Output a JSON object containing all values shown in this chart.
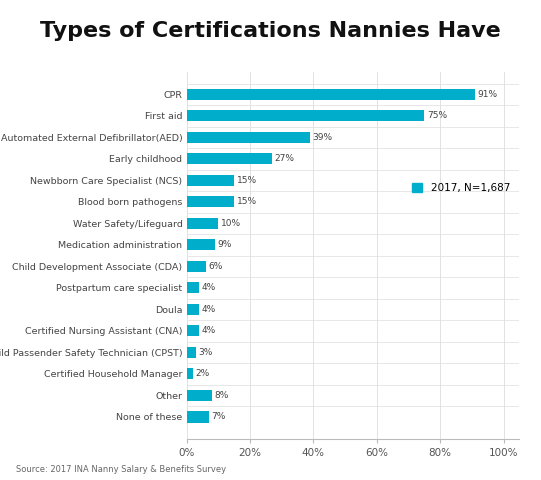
{
  "title": "Types of Certifications Nannies Have",
  "title_bg_color": "#F5D000",
  "bar_color": "#00AECC",
  "source_text": "Source: 2017 INA Nanny Salary & Benefits Survey",
  "legend_label": "2017, N=1,687",
  "categories": [
    "CPR",
    "First aid",
    "Automated External Defibrillator(AED)",
    "Early childhood",
    "Newbborn Care Specialist (NCS)",
    "Blood born pathogens",
    "Water Safety/Lifeguard",
    "Medication administration",
    "Child Development Associate (CDA)",
    "Postpartum care specialist",
    "Doula",
    "Certified Nursing Assistant (CNA)",
    "Child Passender Safety Technician (CPST)",
    "Certified Household Manager",
    "Other",
    "None of these"
  ],
  "values": [
    91,
    75,
    39,
    27,
    15,
    15,
    10,
    9,
    6,
    4,
    4,
    4,
    3,
    2,
    8,
    7
  ],
  "xlim": [
    0,
    100
  ],
  "xtick_labels": [
    "0%",
    "20%",
    "40%",
    "60%",
    "80%",
    "100%"
  ],
  "xtick_values": [
    0,
    20,
    40,
    60,
    80,
    100
  ],
  "background_color": "#ffffff",
  "label_fontsize": 6.8,
  "value_fontsize": 6.5,
  "title_fontsize": 16,
  "source_fontsize": 6.0
}
